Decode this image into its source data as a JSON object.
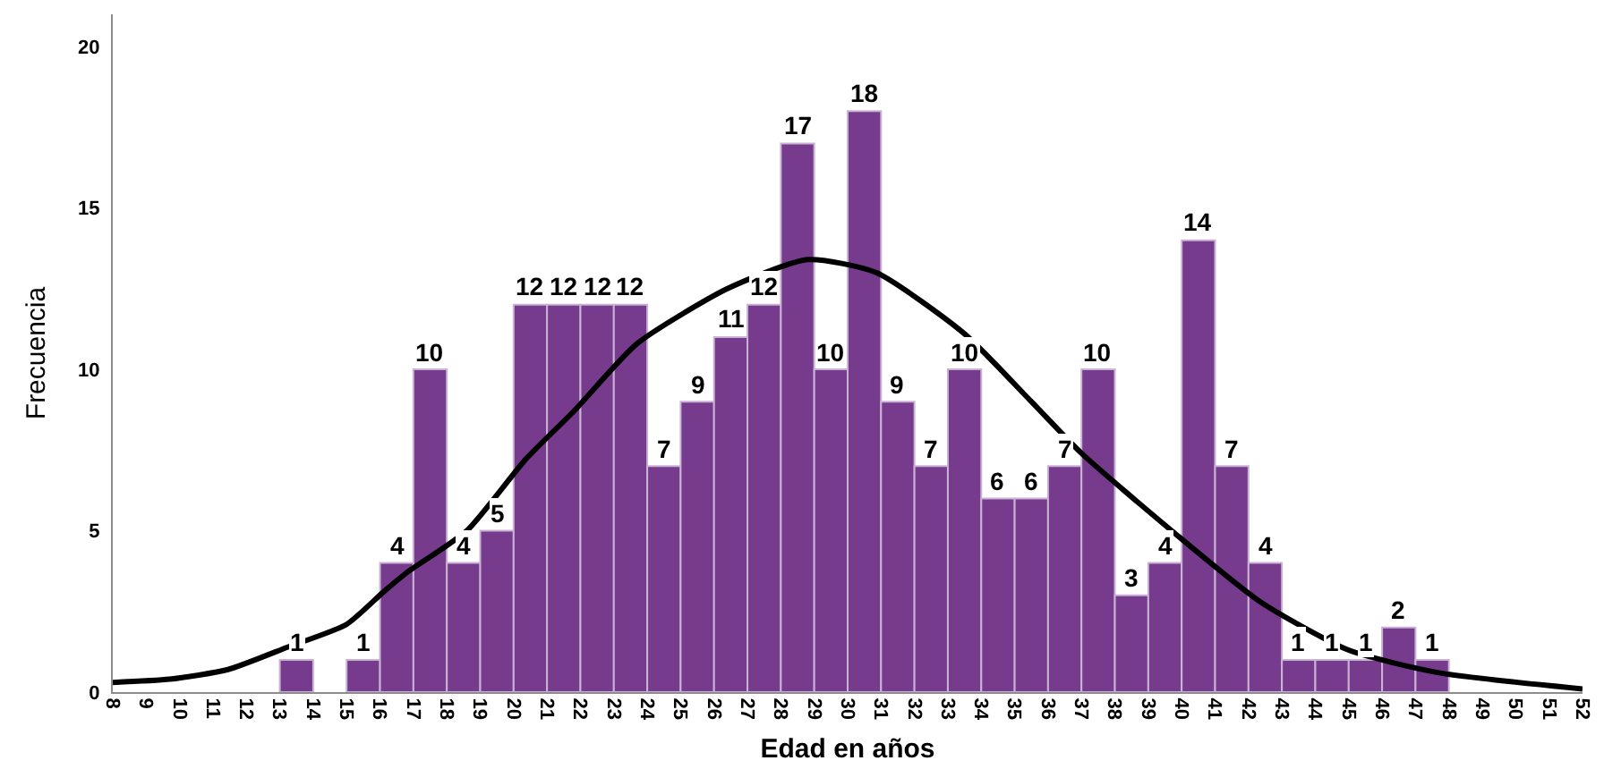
{
  "chart_data": {
    "type": "histogram",
    "xlabel": "Edad en años",
    "ylabel": "Frecuencia",
    "bins": [
      13,
      14,
      15,
      16,
      17,
      18,
      19,
      20,
      21,
      22,
      23,
      24,
      25,
      26,
      27,
      28,
      29,
      30,
      31,
      32,
      33,
      34,
      35,
      36,
      37,
      38,
      39,
      40,
      41,
      42,
      43,
      44,
      45,
      46,
      47,
      48
    ],
    "values": [
      1,
      0,
      1,
      4,
      10,
      4,
      5,
      12,
      12,
      12,
      12,
      7,
      9,
      11,
      12,
      17,
      10,
      18,
      9,
      7,
      10,
      6,
      6,
      7,
      10,
      3,
      4,
      14,
      7,
      4,
      1,
      1,
      1,
      2,
      1
    ],
    "value_labels": [
      "1",
      null,
      "1",
      "4",
      "10",
      "4",
      "5",
      "12",
      "12",
      "12",
      "12",
      "7",
      "9",
      "11",
      "12",
      "17",
      "10",
      "18",
      "9",
      "7",
      "10",
      "6",
      "6",
      "7",
      "10",
      "3",
      "4",
      "14",
      "7",
      "4",
      "1",
      "1",
      "1",
      "2",
      "1"
    ],
    "color": "#773b8e",
    "series": [
      {
        "type": "line",
        "color": "#000000",
        "x": [
          8,
          9.7,
          11.45,
          13.25,
          15,
          16.1,
          16.8,
          18.6,
          20.35,
          21.8,
          23.7,
          26.4,
          28.8,
          30.85,
          33.5,
          35.5,
          37,
          39.7,
          42.35,
          45,
          47.7,
          52
        ],
        "values": [
          0.3,
          0.4,
          0.7,
          1.4,
          2.1,
          3.1,
          3.7,
          5,
          7.2,
          8.7,
          10.8,
          12.5,
          13.4,
          13,
          11.1,
          9,
          7.4,
          5,
          2.8,
          1.3,
          0.6,
          0.1
        ]
      }
    ],
    "xlim": [
      8,
      52
    ],
    "xticks": [
      8,
      9,
      10,
      11,
      12,
      13,
      14,
      15,
      16,
      17,
      18,
      19,
      20,
      21,
      22,
      23,
      24,
      25,
      26,
      27,
      28,
      29,
      30,
      31,
      32,
      33,
      34,
      35,
      36,
      37,
      38,
      39,
      40,
      41,
      42,
      43,
      44,
      45,
      46,
      47,
      48,
      49,
      50,
      51,
      52
    ],
    "ylim": [
      0,
      21
    ],
    "yticks": [
      0,
      5,
      10,
      15,
      20
    ]
  }
}
